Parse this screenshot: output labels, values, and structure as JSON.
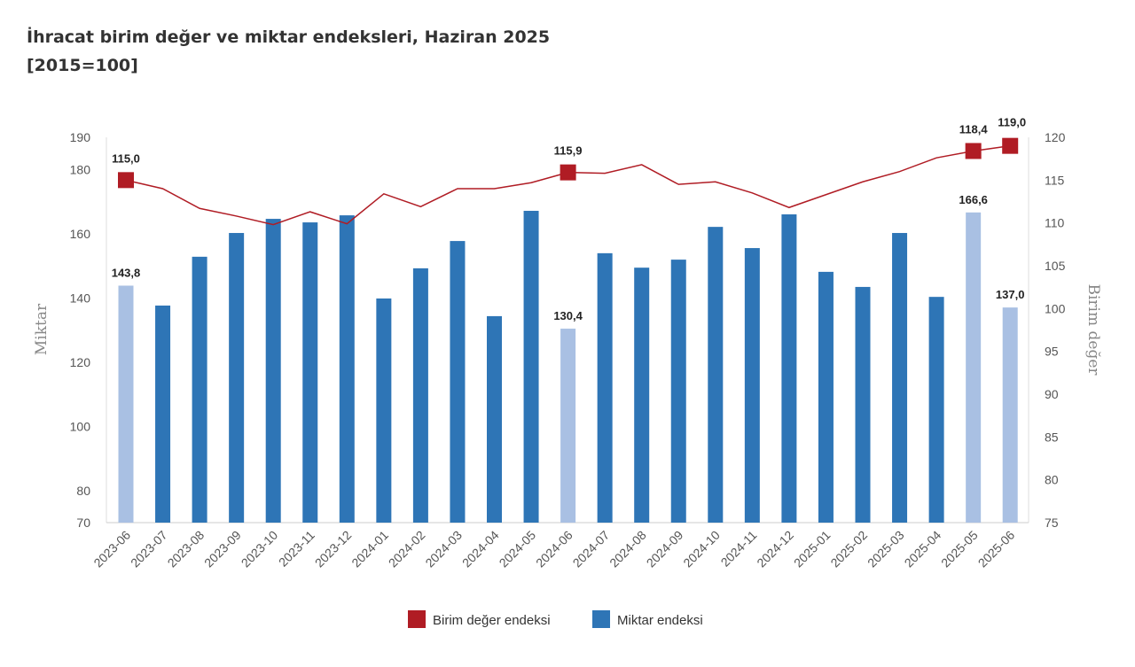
{
  "chart_data": {
    "type": "bar+line",
    "title": "İhracat birim değer ve miktar endeksleri, Haziran 2025",
    "subtitle": "[2015=100]",
    "categories": [
      "2023-06",
      "2023-07",
      "2023-08",
      "2023-09",
      "2023-10",
      "2023-11",
      "2023-12",
      "2024-01",
      "2024-02",
      "2024-03",
      "2024-04",
      "2024-05",
      "2024-06",
      "2024-07",
      "2024-08",
      "2024-09",
      "2024-10",
      "2024-11",
      "2024-12",
      "2025-01",
      "2025-02",
      "2025-03",
      "2025-04",
      "2025-05",
      "2025-06"
    ],
    "series": [
      {
        "name": "Miktar endeksi",
        "type": "bar",
        "axis": "left",
        "color": "#2e75b6",
        "highlight_color": "#a9c0e3",
        "values": [
          143.8,
          137.6,
          152.8,
          160.2,
          164.6,
          163.5,
          165.7,
          139.8,
          149.2,
          157.7,
          134.3,
          167.1,
          130.4,
          153.9,
          149.4,
          151.9,
          162.1,
          155.5,
          166.0,
          148.1,
          143.4,
          160.2,
          140.3,
          166.6,
          137.0
        ],
        "highlighted": [
          0,
          12,
          23,
          24
        ],
        "labels": {
          "0": "143,8",
          "12": "130,4",
          "23": "166,6",
          "24": "137,0"
        }
      },
      {
        "name": "Birim değer endeksi",
        "type": "line",
        "axis": "right",
        "color": "#b01c24",
        "values": [
          115.0,
          114.0,
          111.7,
          110.8,
          109.8,
          111.3,
          109.9,
          113.4,
          111.9,
          114.0,
          114.0,
          114.7,
          115.9,
          115.8,
          116.8,
          114.5,
          114.8,
          113.5,
          111.8,
          113.3,
          114.8,
          116.0,
          117.6,
          118.4,
          119.0
        ],
        "highlighted": [
          0,
          12,
          23,
          24
        ],
        "labels": {
          "0": "115,0",
          "12": "115,9",
          "23": "118,4",
          "24": "119,0"
        }
      }
    ],
    "ylabel": "Miktar",
    "y2label": "Birim değer",
    "ylim": [
      70,
      190
    ],
    "yticks": [
      70,
      80,
      100,
      120,
      140,
      160,
      180,
      190
    ],
    "y2lim": [
      75,
      120
    ],
    "y2ticks": [
      75,
      80,
      85,
      90,
      95,
      100,
      105,
      110,
      115,
      120
    ],
    "grid": false,
    "legend": {
      "position": "bottom",
      "entries": [
        "Birim değer endeksi",
        "Miktar endeksi"
      ]
    }
  }
}
